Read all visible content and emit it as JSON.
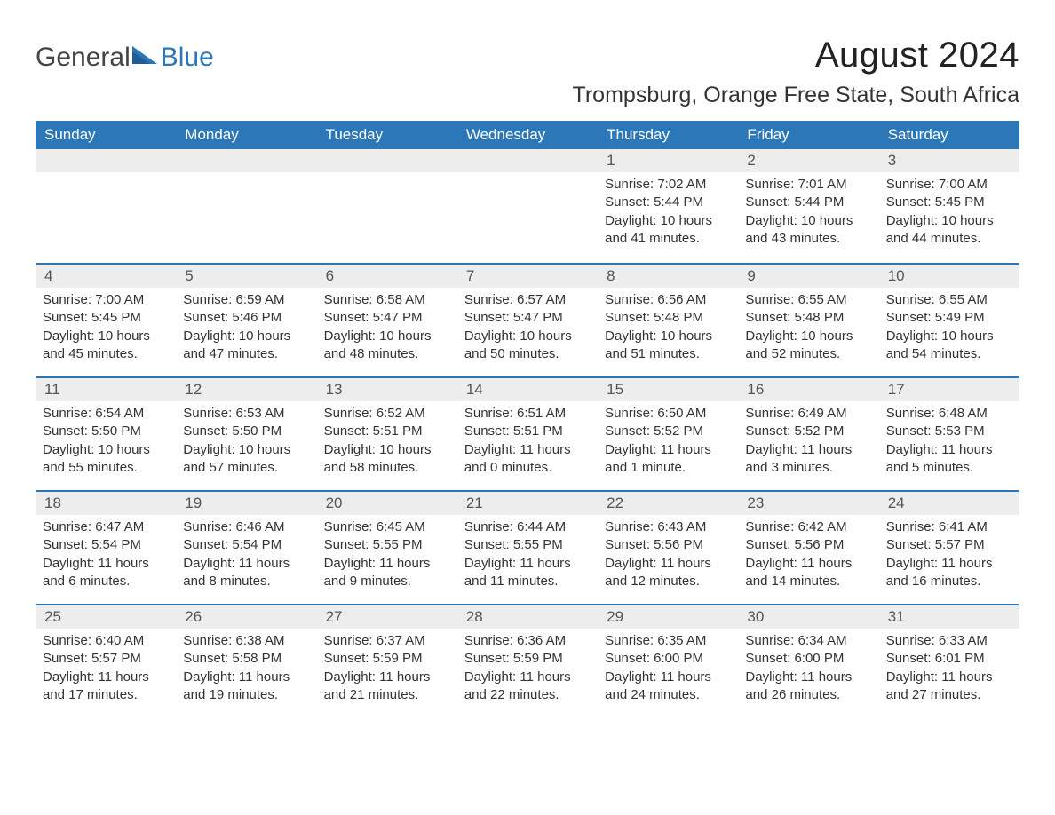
{
  "logo": {
    "text_general": "General",
    "text_blue": "Blue"
  },
  "header": {
    "month_title": "August 2024",
    "location": "Trompsburg, Orange Free State, South Africa"
  },
  "colors": {
    "brand_blue": "#2b77b8",
    "header_bg": "#2b77b8",
    "header_text": "#ffffff",
    "daynum_bg": "#ededed",
    "body_text": "#333333",
    "background": "#ffffff"
  },
  "day_names": [
    "Sunday",
    "Monday",
    "Tuesday",
    "Wednesday",
    "Thursday",
    "Friday",
    "Saturday"
  ],
  "weeks": [
    [
      {
        "blank": true
      },
      {
        "blank": true
      },
      {
        "blank": true
      },
      {
        "blank": true
      },
      {
        "n": "1",
        "sunrise": "7:02 AM",
        "sunset": "5:44 PM",
        "daylight": "10 hours and 41 minutes."
      },
      {
        "n": "2",
        "sunrise": "7:01 AM",
        "sunset": "5:44 PM",
        "daylight": "10 hours and 43 minutes."
      },
      {
        "n": "3",
        "sunrise": "7:00 AM",
        "sunset": "5:45 PM",
        "daylight": "10 hours and 44 minutes."
      }
    ],
    [
      {
        "n": "4",
        "sunrise": "7:00 AM",
        "sunset": "5:45 PM",
        "daylight": "10 hours and 45 minutes."
      },
      {
        "n": "5",
        "sunrise": "6:59 AM",
        "sunset": "5:46 PM",
        "daylight": "10 hours and 47 minutes."
      },
      {
        "n": "6",
        "sunrise": "6:58 AM",
        "sunset": "5:47 PM",
        "daylight": "10 hours and 48 minutes."
      },
      {
        "n": "7",
        "sunrise": "6:57 AM",
        "sunset": "5:47 PM",
        "daylight": "10 hours and 50 minutes."
      },
      {
        "n": "8",
        "sunrise": "6:56 AM",
        "sunset": "5:48 PM",
        "daylight": "10 hours and 51 minutes."
      },
      {
        "n": "9",
        "sunrise": "6:55 AM",
        "sunset": "5:48 PM",
        "daylight": "10 hours and 52 minutes."
      },
      {
        "n": "10",
        "sunrise": "6:55 AM",
        "sunset": "5:49 PM",
        "daylight": "10 hours and 54 minutes."
      }
    ],
    [
      {
        "n": "11",
        "sunrise": "6:54 AM",
        "sunset": "5:50 PM",
        "daylight": "10 hours and 55 minutes."
      },
      {
        "n": "12",
        "sunrise": "6:53 AM",
        "sunset": "5:50 PM",
        "daylight": "10 hours and 57 minutes."
      },
      {
        "n": "13",
        "sunrise": "6:52 AM",
        "sunset": "5:51 PM",
        "daylight": "10 hours and 58 minutes."
      },
      {
        "n": "14",
        "sunrise": "6:51 AM",
        "sunset": "5:51 PM",
        "daylight": "11 hours and 0 minutes."
      },
      {
        "n": "15",
        "sunrise": "6:50 AM",
        "sunset": "5:52 PM",
        "daylight": "11 hours and 1 minute."
      },
      {
        "n": "16",
        "sunrise": "6:49 AM",
        "sunset": "5:52 PM",
        "daylight": "11 hours and 3 minutes."
      },
      {
        "n": "17",
        "sunrise": "6:48 AM",
        "sunset": "5:53 PM",
        "daylight": "11 hours and 5 minutes."
      }
    ],
    [
      {
        "n": "18",
        "sunrise": "6:47 AM",
        "sunset": "5:54 PM",
        "daylight": "11 hours and 6 minutes."
      },
      {
        "n": "19",
        "sunrise": "6:46 AM",
        "sunset": "5:54 PM",
        "daylight": "11 hours and 8 minutes."
      },
      {
        "n": "20",
        "sunrise": "6:45 AM",
        "sunset": "5:55 PM",
        "daylight": "11 hours and 9 minutes."
      },
      {
        "n": "21",
        "sunrise": "6:44 AM",
        "sunset": "5:55 PM",
        "daylight": "11 hours and 11 minutes."
      },
      {
        "n": "22",
        "sunrise": "6:43 AM",
        "sunset": "5:56 PM",
        "daylight": "11 hours and 12 minutes."
      },
      {
        "n": "23",
        "sunrise": "6:42 AM",
        "sunset": "5:56 PM",
        "daylight": "11 hours and 14 minutes."
      },
      {
        "n": "24",
        "sunrise": "6:41 AM",
        "sunset": "5:57 PM",
        "daylight": "11 hours and 16 minutes."
      }
    ],
    [
      {
        "n": "25",
        "sunrise": "6:40 AM",
        "sunset": "5:57 PM",
        "daylight": "11 hours and 17 minutes."
      },
      {
        "n": "26",
        "sunrise": "6:38 AM",
        "sunset": "5:58 PM",
        "daylight": "11 hours and 19 minutes."
      },
      {
        "n": "27",
        "sunrise": "6:37 AM",
        "sunset": "5:59 PM",
        "daylight": "11 hours and 21 minutes."
      },
      {
        "n": "28",
        "sunrise": "6:36 AM",
        "sunset": "5:59 PM",
        "daylight": "11 hours and 22 minutes."
      },
      {
        "n": "29",
        "sunrise": "6:35 AM",
        "sunset": "6:00 PM",
        "daylight": "11 hours and 24 minutes."
      },
      {
        "n": "30",
        "sunrise": "6:34 AM",
        "sunset": "6:00 PM",
        "daylight": "11 hours and 26 minutes."
      },
      {
        "n": "31",
        "sunrise": "6:33 AM",
        "sunset": "6:01 PM",
        "daylight": "11 hours and 27 minutes."
      }
    ]
  ],
  "labels": {
    "sunrise": "Sunrise: ",
    "sunset": "Sunset: ",
    "daylight": "Daylight: "
  }
}
